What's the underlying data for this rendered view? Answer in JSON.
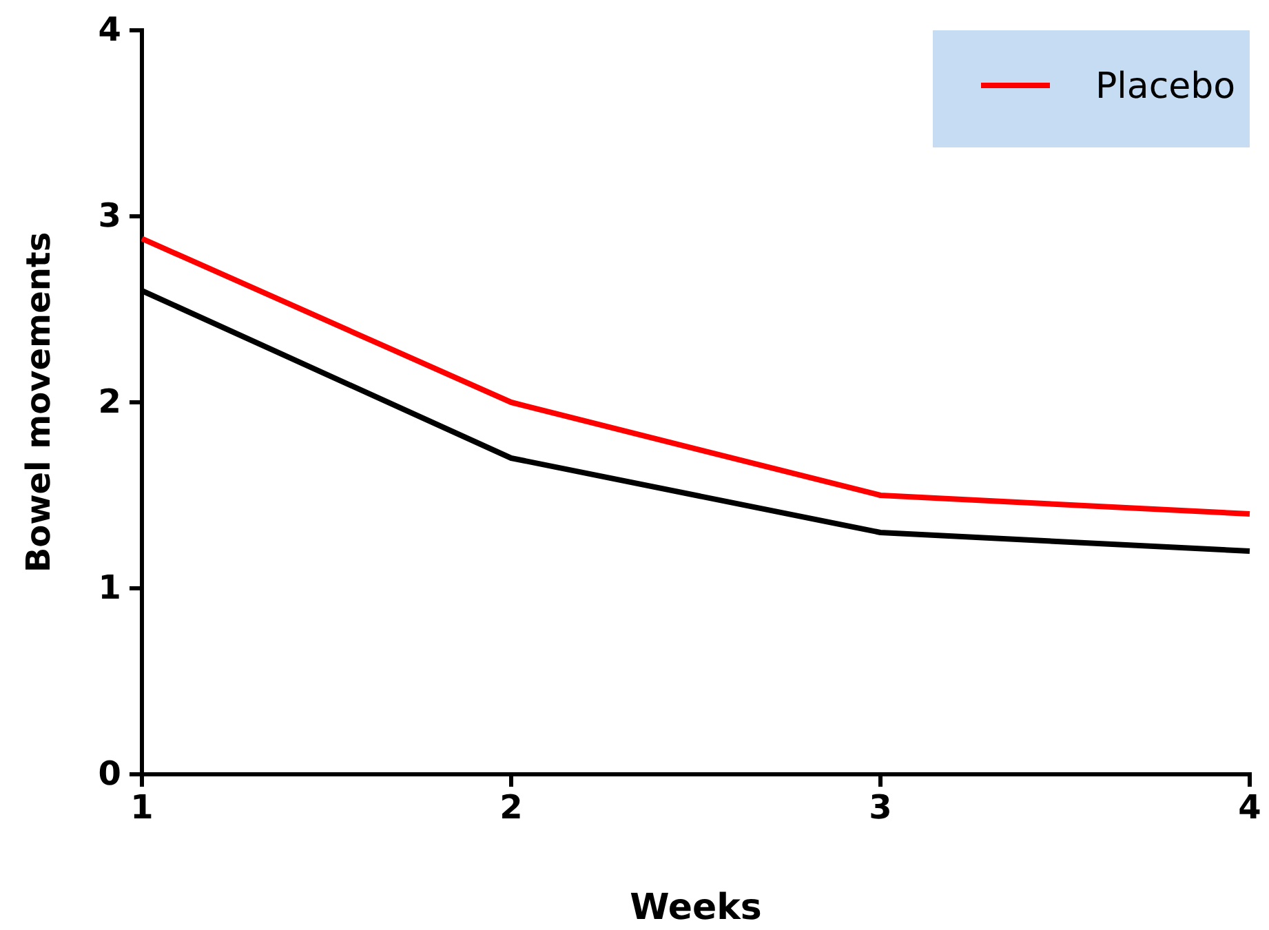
{
  "chart_data": {
    "type": "line",
    "xlabel": "Weeks",
    "ylabel": "Bowel movements",
    "x": [
      1,
      2,
      3,
      4
    ],
    "series": [
      {
        "color": "#000000",
        "values": [
          2.6,
          1.7,
          1.3,
          1.2
        ]
      },
      {
        "name": "Placebo",
        "color": "#ff0000",
        "values": [
          2.88,
          2.0,
          1.5,
          1.4
        ]
      }
    ],
    "xlim": [
      1,
      4
    ],
    "xticks": [
      1,
      2,
      3,
      4
    ],
    "ylim": [
      0,
      4
    ],
    "yticks": [
      0,
      1,
      2,
      3,
      4
    ],
    "grid": false,
    "legend": "top right",
    "marker": "none",
    "line_style": "solid"
  }
}
